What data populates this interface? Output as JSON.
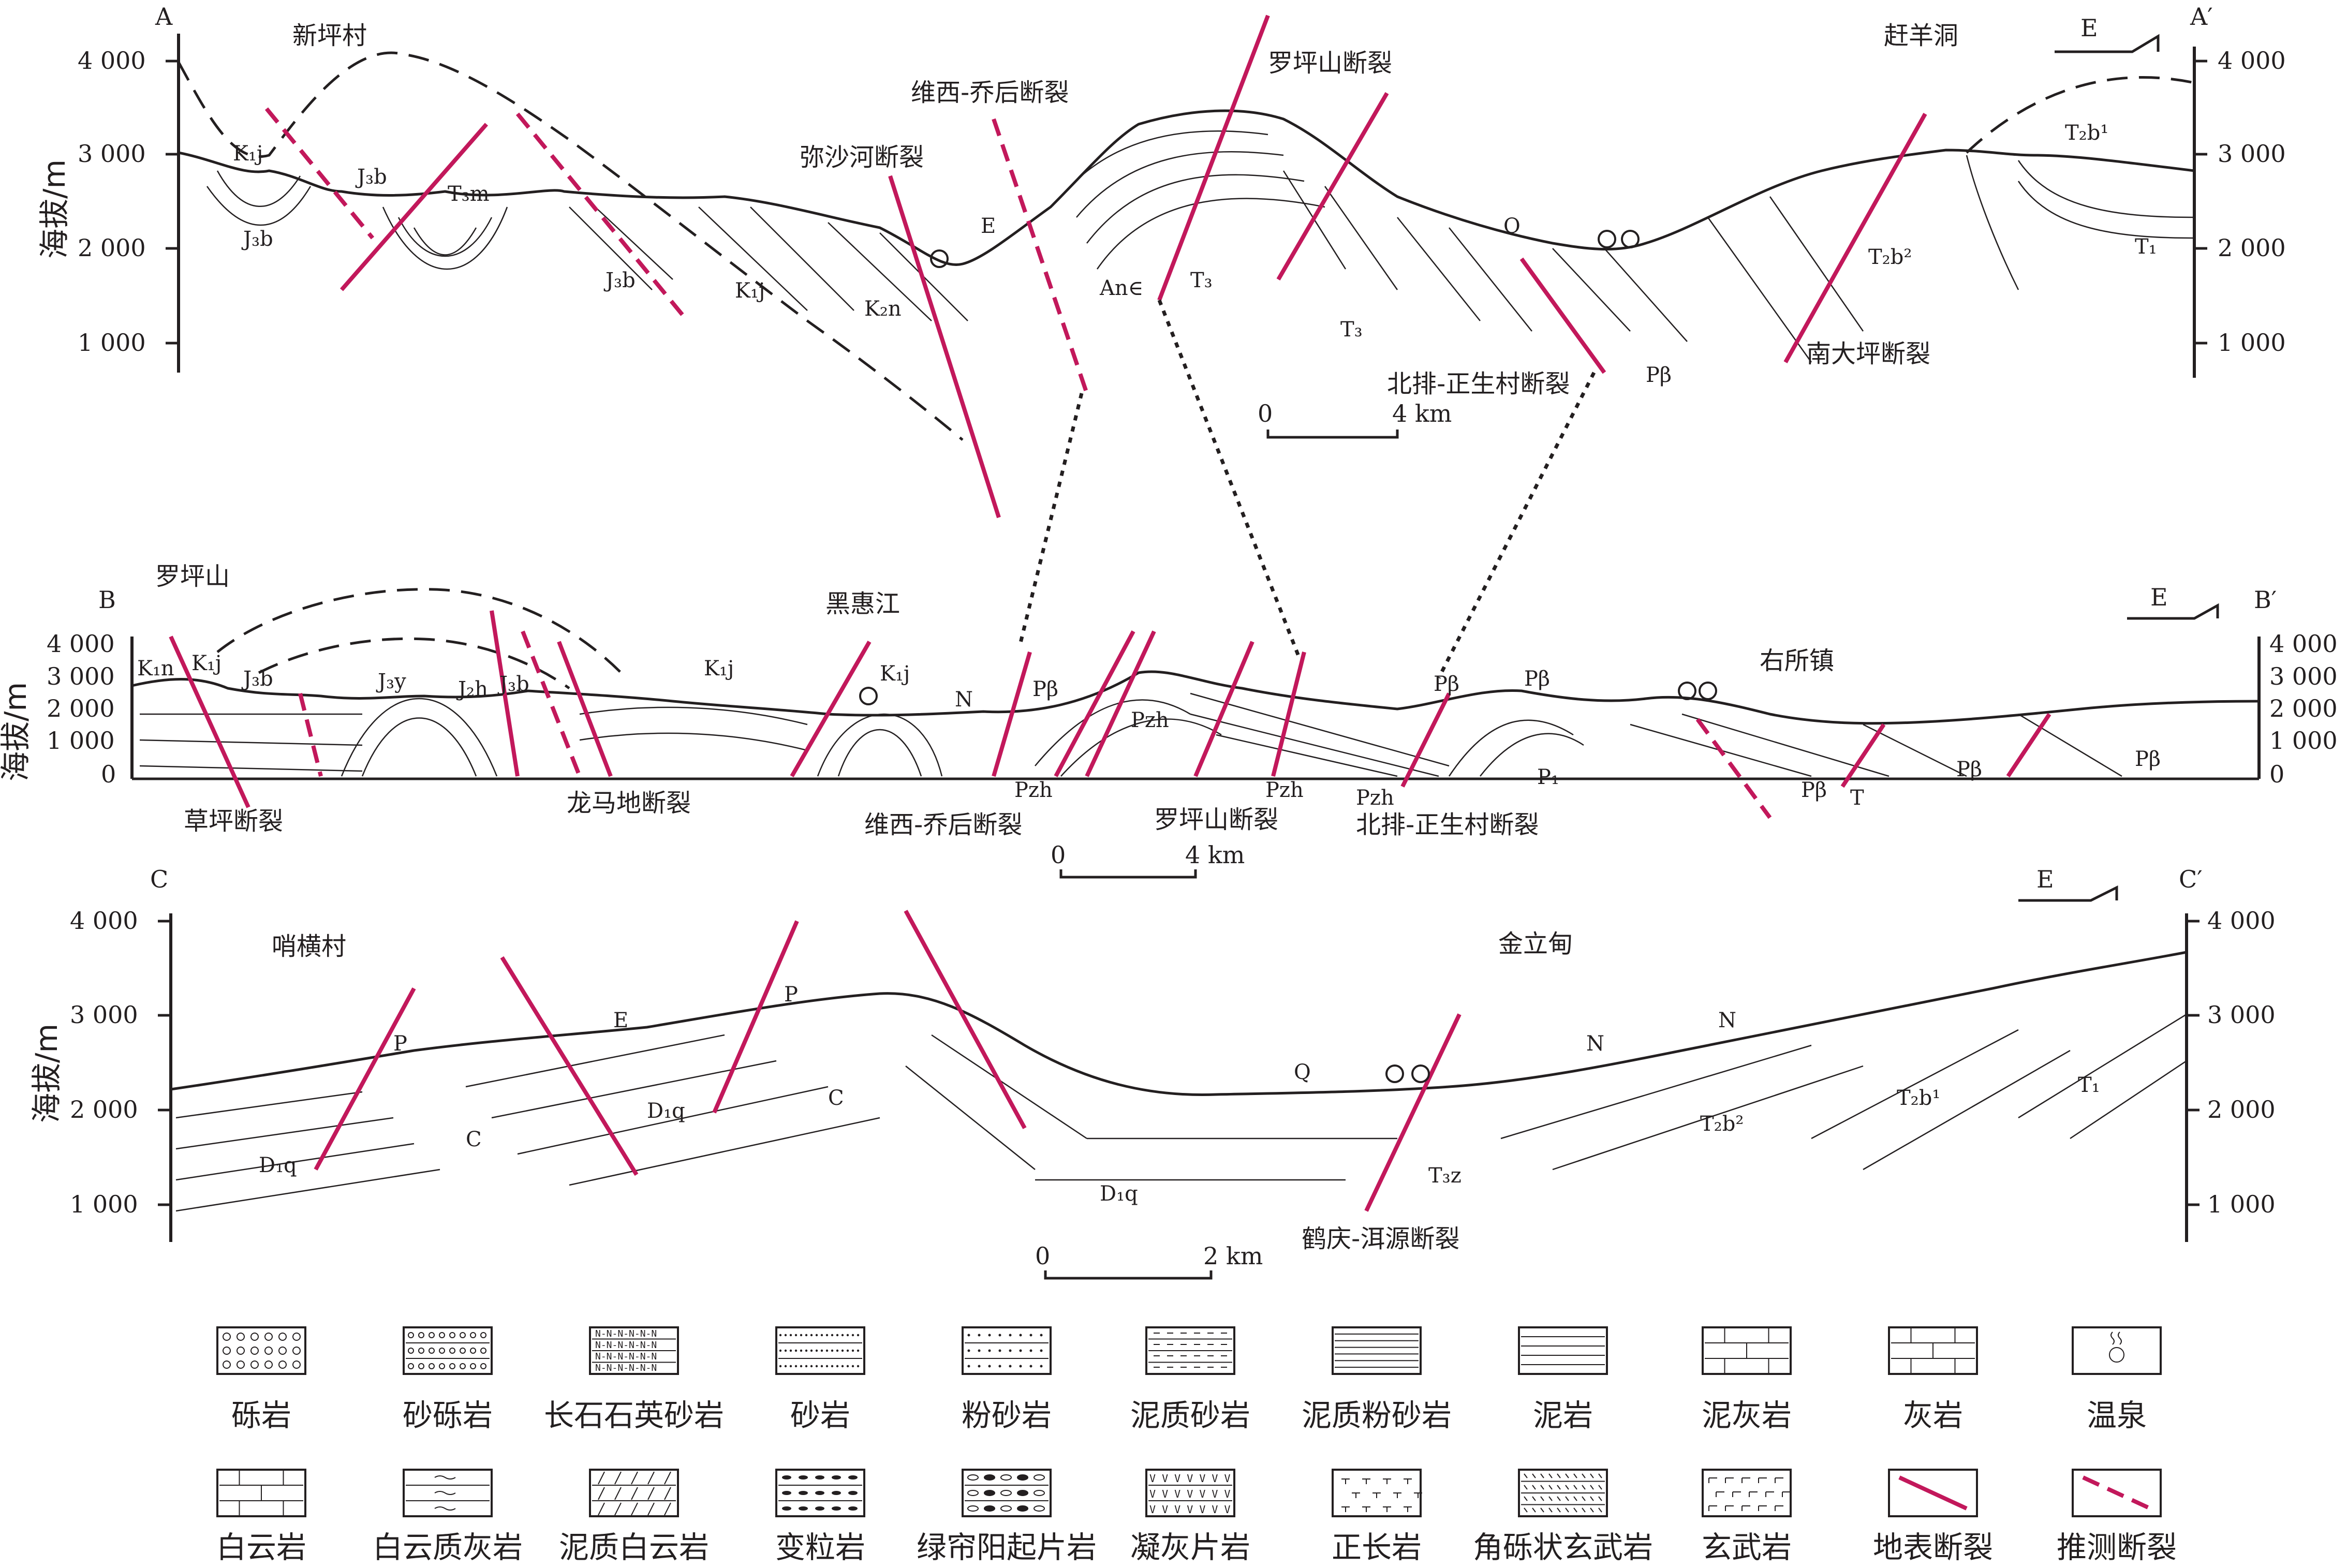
{
  "sections": {
    "A": {
      "label_left": "A",
      "label_right": "A′",
      "y_axis_title": "海拔/m",
      "ticks": [
        "4 000",
        "3 000",
        "2 000",
        "1 000"
      ],
      "places": [
        "新坪村",
        "赶羊洞"
      ],
      "faults": [
        "维西-乔后断裂",
        "弥沙河断裂",
        "罗坪山断裂",
        "北排-正生村断裂",
        "南大坪断裂"
      ],
      "units": [
        "K₁j",
        "J₃b",
        "J₃b",
        "T₃m",
        "J₃b",
        "K₁j",
        "K₂n",
        "E",
        "An∈",
        "T₃",
        "T₃",
        "Q",
        "Pβ",
        "T₂b²",
        "T₂b¹",
        "T₁"
      ],
      "scale": {
        "zero": "0",
        "label": "4 km"
      },
      "direction": "E"
    },
    "B": {
      "label_left": "B",
      "label_right": "B′",
      "y_axis_title": "海拔/m",
      "ticks": [
        "4 000",
        "3 000",
        "2 000",
        "1 000",
        "0"
      ],
      "places": [
        "罗坪山",
        "黑惠江",
        "右所镇"
      ],
      "faults": [
        "草坪断裂",
        "龙马地断裂",
        "维西-乔后断裂",
        "罗坪山断裂",
        "北排-正生村断裂"
      ],
      "units": [
        "K₁n",
        "K₁j",
        "J₃b",
        "J₃y",
        "J₂h",
        "J₃b",
        "K₁j",
        "K₁j",
        "N",
        "Pβ",
        "Pzh",
        "Pzh",
        "Pzh",
        "Pzh",
        "Pβ",
        "Pβ",
        "P₁",
        "Pβ",
        "T",
        "Pβ",
        "Pβ"
      ],
      "scale": {
        "zero": "0",
        "label": "4 km"
      },
      "direction": "E"
    },
    "C": {
      "label_left": "C",
      "label_right": "C′",
      "y_axis_title": "海拔/m",
      "ticks": [
        "4 000",
        "3 000",
        "2 000",
        "1 000"
      ],
      "places": [
        "哨横村",
        "金立甸"
      ],
      "faults": [
        "鹤庆-洱源断裂"
      ],
      "units": [
        "P",
        "E",
        "P",
        "D₁q",
        "C",
        "D₁q",
        "C",
        "D₁q",
        "Q",
        "T₃z",
        "N",
        "N",
        "T₂b²",
        "T₂b¹",
        "T₁"
      ],
      "scale": {
        "zero": "0",
        "label": "2 km"
      },
      "direction": "E"
    }
  },
  "legend": [
    {
      "label": "砾岩",
      "icon": "conglomerate-pattern"
    },
    {
      "label": "砂砾岩",
      "icon": "sandy-conglomerate-pattern"
    },
    {
      "label": "长石石英砂岩",
      "icon": "feldspar-quartz-sandstone-pattern"
    },
    {
      "label": "砂岩",
      "icon": "sandstone-pattern"
    },
    {
      "label": "粉砂岩",
      "icon": "siltstone-pattern"
    },
    {
      "label": "泥质砂岩",
      "icon": "argillaceous-sandstone-pattern"
    },
    {
      "label": "泥质粉砂岩",
      "icon": "argillaceous-siltstone-pattern"
    },
    {
      "label": "泥岩",
      "icon": "mudstone-pattern"
    },
    {
      "label": "泥灰岩",
      "icon": "marl-pattern"
    },
    {
      "label": "灰岩",
      "icon": "limestone-pattern"
    },
    {
      "label": "温泉",
      "icon": "hot-spring-icon"
    },
    {
      "label": "白云岩",
      "icon": "dolomite-pattern"
    },
    {
      "label": "白云质灰岩",
      "icon": "dolomitic-limestone-pattern"
    },
    {
      "label": "泥质白云岩",
      "icon": "argillaceous-dolomite-pattern"
    },
    {
      "label": "变粒岩",
      "icon": "leptynite-pattern"
    },
    {
      "label": "绿帘阳起片岩",
      "icon": "epidote-actinolite-schist-pattern"
    },
    {
      "label": "凝灰片岩",
      "icon": "tuffaceous-schist-pattern"
    },
    {
      "label": "正长岩",
      "icon": "syenite-pattern"
    },
    {
      "label": "角砾状玄武岩",
      "icon": "brecciated-basalt-pattern"
    },
    {
      "label": "玄武岩",
      "icon": "basalt-pattern"
    },
    {
      "label": "地表断裂",
      "icon": "surface-fault-icon"
    },
    {
      "label": "推测断裂",
      "icon": "inferred-fault-icon"
    }
  ],
  "colors": {
    "fault": "#c2185b",
    "ink": "#231f20"
  }
}
